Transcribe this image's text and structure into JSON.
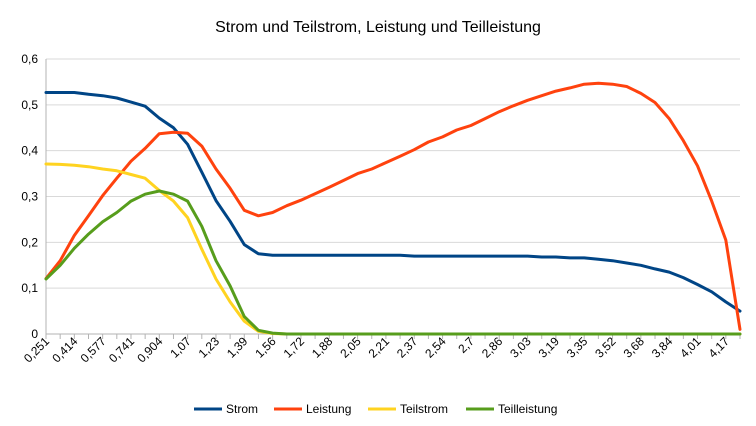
{
  "chart_data": {
    "type": "line",
    "title": "Strom und Teilstrom, Leistung und Teilleistung",
    "xlabel": "",
    "ylabel": "",
    "ylim": [
      0,
      0.6
    ],
    "yticks": [
      "0",
      "0,1",
      "0,2",
      "0,3",
      "0,4",
      "0,5",
      "0,6"
    ],
    "grid": true,
    "legend": "bottom",
    "x": [
      0.251,
      0.333,
      0.414,
      0.496,
      0.577,
      0.659,
      0.741,
      0.822,
      0.904,
      0.986,
      1.07,
      1.15,
      1.23,
      1.31,
      1.39,
      1.47,
      1.56,
      1.64,
      1.72,
      1.8,
      1.88,
      1.96,
      2.05,
      2.13,
      2.21,
      2.29,
      2.37,
      2.45,
      2.54,
      2.62,
      2.7,
      2.78,
      2.86,
      2.94,
      3.03,
      3.11,
      3.19,
      3.27,
      3.35,
      3.43,
      3.52,
      3.6,
      3.68,
      3.76,
      3.84,
      3.92,
      4.01,
      4.09,
      4.17,
      4.25
    ],
    "x_tick_labels": [
      "0,251",
      "0,414",
      "0,577",
      "0,741",
      "0,904",
      "1,07",
      "1,23",
      "1,39",
      "1,56",
      "1,72",
      "1,88",
      "2,05",
      "2,21",
      "2,37",
      "2,54",
      "2,7",
      "2,86",
      "3,03",
      "3,19",
      "3,35",
      "3,52",
      "3,68",
      "3,84",
      "4,01",
      "4,17"
    ],
    "series": [
      {
        "name": "Strom",
        "color": "#004586",
        "values": [
          0.527,
          0.527,
          0.527,
          0.523,
          0.52,
          0.515,
          0.506,
          0.497,
          0.471,
          0.45,
          0.414,
          0.353,
          0.291,
          0.246,
          0.195,
          0.175,
          0.172,
          0.172,
          0.172,
          0.172,
          0.172,
          0.172,
          0.172,
          0.172,
          0.172,
          0.172,
          0.17,
          0.17,
          0.17,
          0.17,
          0.17,
          0.17,
          0.17,
          0.17,
          0.17,
          0.168,
          0.168,
          0.166,
          0.166,
          0.163,
          0.16,
          0.155,
          0.15,
          0.142,
          0.135,
          0.123,
          0.108,
          0.092,
          0.07,
          0.05
        ]
      },
      {
        "name": "Leistung",
        "color": "#ff420e",
        "values": [
          0.121,
          0.16,
          0.215,
          0.258,
          0.302,
          0.34,
          0.377,
          0.405,
          0.437,
          0.44,
          0.438,
          0.41,
          0.36,
          0.318,
          0.27,
          0.258,
          0.265,
          0.28,
          0.292,
          0.306,
          0.32,
          0.335,
          0.35,
          0.36,
          0.374,
          0.388,
          0.402,
          0.419,
          0.43,
          0.445,
          0.455,
          0.47,
          0.485,
          0.498,
          0.51,
          0.52,
          0.53,
          0.537,
          0.545,
          0.547,
          0.545,
          0.54,
          0.525,
          0.505,
          0.47,
          0.422,
          0.367,
          0.29,
          0.205,
          0.01
        ]
      },
      {
        "name": "Teilstrom",
        "color": "#ffd320",
        "values": [
          0.371,
          0.37,
          0.368,
          0.365,
          0.36,
          0.356,
          0.348,
          0.34,
          0.313,
          0.29,
          0.254,
          0.185,
          0.12,
          0.07,
          0.028,
          0.006,
          0.001,
          0,
          0,
          0,
          0,
          0,
          0,
          0,
          0,
          0,
          0,
          0,
          0,
          0,
          0,
          0,
          0,
          0,
          0,
          0,
          0,
          0,
          0,
          0,
          0,
          0,
          0,
          0,
          0,
          0,
          0,
          0,
          0,
          0
        ]
      },
      {
        "name": "Teilleistung",
        "color": "#579d1c",
        "values": [
          0.12,
          0.15,
          0.187,
          0.218,
          0.245,
          0.265,
          0.29,
          0.305,
          0.312,
          0.305,
          0.29,
          0.235,
          0.16,
          0.105,
          0.038,
          0.008,
          0.002,
          0,
          0,
          0,
          0,
          0,
          0,
          0,
          0,
          0,
          0,
          0,
          0,
          0,
          0,
          0,
          0,
          0,
          0,
          0,
          0,
          0,
          0,
          0,
          0,
          0,
          0,
          0,
          0,
          0,
          0,
          0,
          0,
          0
        ]
      }
    ]
  }
}
